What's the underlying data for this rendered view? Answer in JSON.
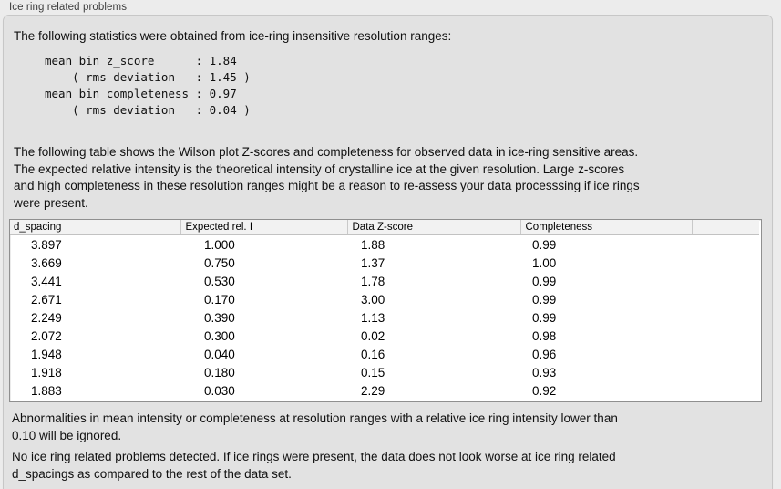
{
  "panel": {
    "title": "Ice ring related problems"
  },
  "intro": "The following statistics were obtained from ice-ring insensitive resolution ranges:",
  "stats_block": "mean bin z_score      : 1.84\n    ( rms deviation   : 1.45 )\nmean bin completeness : 0.97\n    ( rms deviation   : 0.04 )",
  "stats_values": {
    "mean_bin_z_score": "1.84",
    "z_score_rms_deviation": "1.45",
    "mean_bin_completeness": "0.97",
    "completeness_rms_deviation": "0.04"
  },
  "description": "The following table shows the Wilson plot Z-scores and completeness for observed data in ice-ring sensitive areas.\nThe expected relative intensity is the theoretical intensity of crystalline ice at the given resolution. Large z-scores\nand high completeness in these resolution ranges might be a reason to re-assess your data processsing if ice rings\nwere present.",
  "table": {
    "columns": [
      "d_spacing",
      "Expected rel. I",
      "Data Z-score",
      "Completeness",
      ""
    ],
    "rows": [
      [
        "3.897",
        "1.000",
        "1.88",
        "0.99"
      ],
      [
        "3.669",
        "0.750",
        "1.37",
        "1.00"
      ],
      [
        "3.441",
        "0.530",
        "1.78",
        "0.99"
      ],
      [
        "2.671",
        "0.170",
        "3.00",
        "0.99"
      ],
      [
        "2.249",
        "0.390",
        "1.13",
        "0.99"
      ],
      [
        "2.072",
        "0.300",
        "0.02",
        "0.98"
      ],
      [
        "1.948",
        "0.040",
        "0.16",
        "0.96"
      ],
      [
        "1.918",
        "0.180",
        "0.15",
        "0.93"
      ],
      [
        "1.883",
        "0.030",
        "2.29",
        "0.92"
      ]
    ]
  },
  "notes": {
    "ignore_rule": "Abnormalities in mean intensity or completeness at resolution ranges with a relative ice ring intensity lower than\n0.10 will be ignored.",
    "conclusion": "No ice ring related problems detected. If ice rings were present, the data does not look worse at ice ring related\nd_spacings as compared to the rest of the data set."
  },
  "colors": {
    "page_background": "#ececec",
    "groupbox_background": "#e2e2e2",
    "table_header_background": "#f2f2f2",
    "table_body_background": "#ffffff",
    "text": "#101010"
  }
}
